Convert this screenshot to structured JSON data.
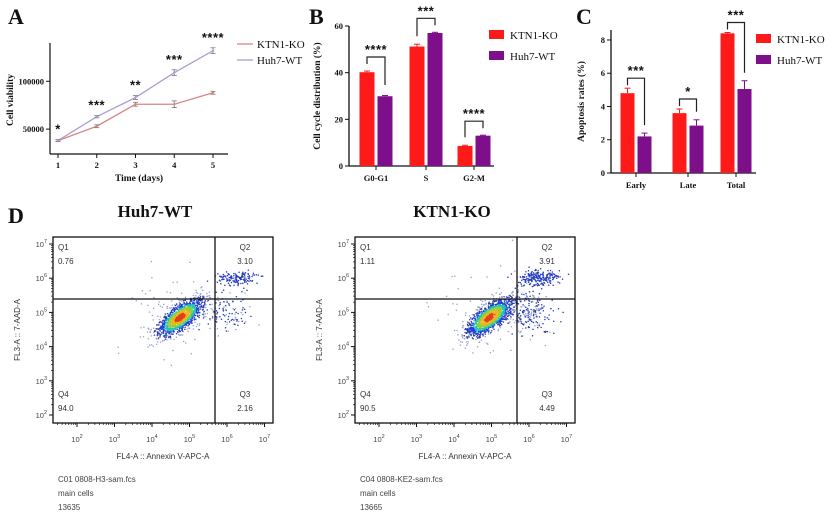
{
  "figure": {
    "panel_letters": [
      "A",
      "B",
      "C",
      "D"
    ]
  },
  "colors": {
    "ko_line": "#d98585",
    "wt_line": "#b09bd4",
    "ko_bar": "#ff1a1a",
    "wt_bar": "#7d0f8a",
    "axis": "#111111"
  },
  "chart_data": [
    {
      "panel": "A",
      "type": "line",
      "x": [
        1,
        2,
        3,
        4,
        5
      ],
      "xlabel": "Time (days)",
      "ylabel": "Cell viability",
      "yticks": [
        50000,
        100000
      ],
      "ylim": [
        24000,
        140000
      ],
      "series": [
        {
          "name": "KTN1-KO",
          "values": [
            38000,
            53000,
            76000,
            76000,
            88000
          ],
          "errors": [
            1000,
            1500,
            2000,
            3500,
            1500
          ]
        },
        {
          "name": "Huh7-WT",
          "values": [
            38000,
            63000,
            83000,
            109000,
            132000
          ],
          "errors": [
            1000,
            1200,
            2000,
            3000,
            3000
          ]
        }
      ],
      "significance": [
        "*",
        "***",
        "**",
        "***",
        "****"
      ],
      "legend": "right"
    },
    {
      "panel": "B",
      "type": "bar",
      "categories": [
        "G0-G1",
        "S",
        "G2-M"
      ],
      "ylabel": "Cell cycle distribution (%)",
      "yticks": [
        0,
        20,
        40,
        60
      ],
      "ylim": [
        0,
        60
      ],
      "series": [
        {
          "name": "KTN1-KO",
          "values": [
            40.2,
            51.2,
            8.6
          ],
          "errors": [
            0.5,
            1.0,
            0.3
          ]
        },
        {
          "name": "Huh7-WT",
          "values": [
            29.9,
            57.0,
            13.0
          ],
          "errors": [
            0.3,
            0.3,
            0.2
          ]
        }
      ],
      "significance": [
        "****",
        "***",
        "****"
      ],
      "legend": "right"
    },
    {
      "panel": "C",
      "type": "bar",
      "categories": [
        "Early",
        "Late",
        "Total"
      ],
      "ylabel": "Apoptosis rates (%)",
      "yticks": [
        0,
        2,
        4,
        6,
        8
      ],
      "ylim": [
        0,
        8.6
      ],
      "series": [
        {
          "name": "KTN1-KO",
          "values": [
            4.8,
            3.6,
            8.4
          ],
          "errors": [
            0.3,
            0.25,
            0.05
          ]
        },
        {
          "name": "Huh7-WT",
          "values": [
            2.2,
            2.85,
            5.05
          ],
          "errors": [
            0.2,
            0.35,
            0.5
          ]
        }
      ],
      "significance": [
        "***",
        "*",
        "***"
      ],
      "legend": "right"
    },
    {
      "panel": "D",
      "type": "scatter",
      "title": "Huh7-WT",
      "xlabel": "FL4-A :: Annexin V-APC-A",
      "ylabel": "FL3-A :: 7-AAD-A",
      "tick_base": "10",
      "xtick_exponents": [
        "2",
        "3",
        "4",
        "5",
        "6",
        "7"
      ],
      "ytick_exponents": [
        "2",
        "3",
        "4",
        "5",
        "6",
        "7"
      ],
      "scale": "log",
      "quadrants": [
        {
          "label": "Q1",
          "value": "0.76"
        },
        {
          "label": "Q2",
          "value": "3.10"
        },
        {
          "label": "Q3",
          "value": "2.16"
        },
        {
          "label": "Q4",
          "value": "94.0"
        }
      ],
      "footer": [
        "C01 0808-H3-sam.fcs",
        "main cells",
        "13635"
      ]
    },
    {
      "panel": "D",
      "type": "scatter",
      "title": "KTN1-KO",
      "xlabel": "FL4-A :: Annexin V-APC-A",
      "ylabel": "FL3-A :: 7-AAD-A",
      "tick_base": "10",
      "xtick_exponents": [
        "2",
        "3",
        "4",
        "5",
        "6",
        "7"
      ],
      "ytick_exponents": [
        "2",
        "3",
        "4",
        "5",
        "6",
        "7"
      ],
      "scale": "log",
      "quadrants": [
        {
          "label": "Q1",
          "value": "1.11"
        },
        {
          "label": "Q2",
          "value": "3.91"
        },
        {
          "label": "Q3",
          "value": "4.49"
        },
        {
          "label": "Q4",
          "value": "90.5"
        }
      ],
      "footer": [
        "C04 0808-KE2-sam.fcs",
        "main cells",
        "13665"
      ]
    }
  ]
}
